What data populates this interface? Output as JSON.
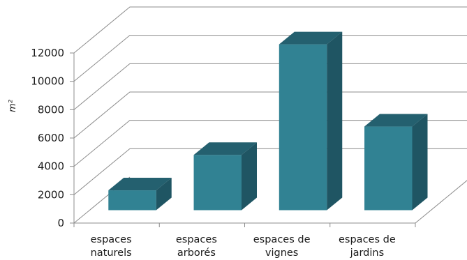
{
  "chart_data": {
    "type": "bar",
    "style": "3d-column",
    "categories": [
      [
        "espaces",
        "naturels"
      ],
      [
        "espaces",
        "arborés"
      ],
      [
        "espaces de",
        "vignes"
      ],
      [
        "espaces de",
        "jardins"
      ]
    ],
    "values": [
      1400,
      3900,
      11700,
      5900
    ],
    "ylabel": "m²",
    "ylim": [
      0,
      12000
    ],
    "yticks": [
      0,
      2000,
      4000,
      6000,
      8000,
      10000,
      12000
    ],
    "grid": true,
    "legend": false,
    "colors": {
      "bar_front": "#318293",
      "bar_top": "#24606f",
      "bar_side": "#1f5563",
      "grid": "#8c8c8c"
    }
  }
}
